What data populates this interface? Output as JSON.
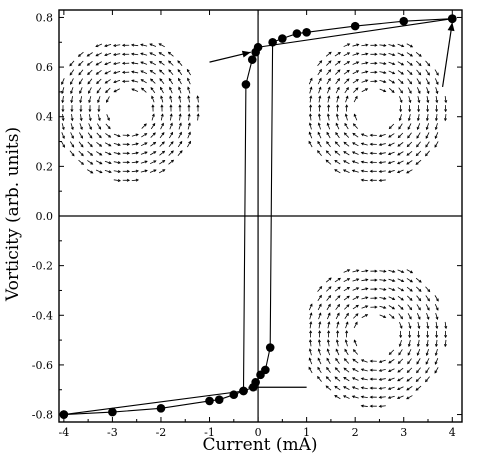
{
  "chart_data": {
    "type": "line",
    "xlabel": "Current (mA)",
    "ylabel": "Vorticity (arb. units)",
    "xlim": [
      -4.1,
      4.2
    ],
    "ylim": [
      -0.83,
      0.83
    ],
    "xticks": [
      "-4",
      "-3",
      "-2",
      "-1",
      "0",
      "1",
      "2",
      "3",
      "4"
    ],
    "yticks": [
      "-0.8",
      "-0.6",
      "-0.4",
      "-0.2",
      "0.0",
      "0.2",
      "0.4",
      "0.6",
      "0.8"
    ],
    "grid": false,
    "series": [
      {
        "values": [
          {
            "x": -4.0,
            "y": -0.8
          },
          {
            "x": -3.0,
            "y": -0.79
          },
          {
            "x": -2.0,
            "y": -0.775
          },
          {
            "x": -1.0,
            "y": -0.745
          },
          {
            "x": -0.8,
            "y": -0.74
          },
          {
            "x": -0.5,
            "y": -0.72
          },
          {
            "x": -0.3,
            "y": -0.705
          },
          {
            "x": -0.1,
            "y": -0.69
          },
          {
            "x": -0.05,
            "y": -0.67
          },
          {
            "x": 0.05,
            "y": -0.64
          },
          {
            "x": 0.15,
            "y": -0.62
          },
          {
            "x": 0.25,
            "y": -0.53
          },
          {
            "x": 0.3,
            "y": 0.7
          },
          {
            "x": 0.5,
            "y": 0.715
          },
          {
            "x": 0.8,
            "y": 0.735
          },
          {
            "x": 1.0,
            "y": 0.74
          },
          {
            "x": 2.0,
            "y": 0.765
          },
          {
            "x": 3.0,
            "y": 0.785
          },
          {
            "x": 4.0,
            "y": 0.795
          }
        ]
      },
      {
        "values": [
          {
            "x": 4.0,
            "y": 0.795
          },
          {
            "x": 0.0,
            "y": 0.68
          },
          {
            "x": -0.05,
            "y": 0.66
          },
          {
            "x": -0.12,
            "y": 0.63
          },
          {
            "x": -0.25,
            "y": 0.53
          },
          {
            "x": -0.3,
            "y": -0.705
          },
          {
            "x": -4.0,
            "y": -0.8
          }
        ]
      }
    ],
    "insets": [
      {
        "name": "vortex-inset-ccw",
        "chirality": "counterclockwise",
        "center": {
          "x": -2.7,
          "y": 0.43
        }
      },
      {
        "name": "vortex-inset-cw-top",
        "chirality": "clockwise",
        "center": {
          "x": 2.4,
          "y": 0.43
        }
      },
      {
        "name": "vortex-inset-cw-bottom",
        "chirality": "clockwise",
        "center": {
          "x": 2.4,
          "y": -0.48
        }
      }
    ]
  }
}
